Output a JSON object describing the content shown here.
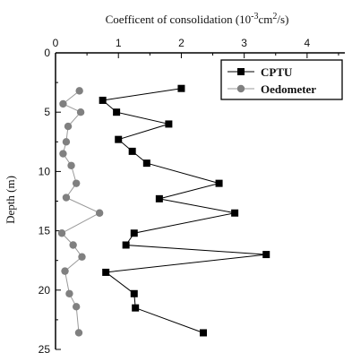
{
  "chart_data": {
    "type": "scatter",
    "title": "",
    "xlabel_parts": {
      "prefix": "Coefficent of consolidation (10",
      "exp1": "-3",
      "mid": "cm",
      "exp2": "2",
      "suffix": "/s)"
    },
    "ylabel": "Depth (m)",
    "x_axis_position": "top",
    "y_inverted": true,
    "xlim": [
      0,
      4.6
    ],
    "ylim": [
      25,
      0
    ],
    "x_ticks": [
      0,
      1,
      2,
      3,
      4
    ],
    "y_ticks": [
      0,
      5,
      10,
      15,
      20,
      25
    ],
    "grid": false,
    "legend_position": "top-right",
    "series": [
      {
        "name": "CPTU",
        "color": "#000000",
        "line_color": "#000000",
        "marker": "square",
        "points": [
          [
            2.0,
            3.0
          ],
          [
            0.75,
            4.0
          ],
          [
            0.97,
            5.0
          ],
          [
            1.8,
            6.0
          ],
          [
            1.0,
            7.3
          ],
          [
            1.22,
            8.3
          ],
          [
            1.45,
            9.3
          ],
          [
            2.6,
            11.0
          ],
          [
            1.65,
            12.3
          ],
          [
            2.85,
            13.5
          ],
          [
            1.25,
            15.2
          ],
          [
            1.12,
            16.2
          ],
          [
            3.35,
            17.0
          ],
          [
            0.8,
            18.5
          ],
          [
            1.25,
            20.3
          ],
          [
            1.27,
            21.5
          ],
          [
            2.35,
            23.6
          ]
        ]
      },
      {
        "name": "Oedometer",
        "color": "#808080",
        "line_color": "#999999",
        "marker": "circle",
        "points": [
          [
            0.38,
            3.2
          ],
          [
            0.12,
            4.3
          ],
          [
            0.4,
            5.0
          ],
          [
            0.2,
            6.2
          ],
          [
            0.17,
            7.5
          ],
          [
            0.12,
            8.5
          ],
          [
            0.25,
            9.5
          ],
          [
            0.33,
            11.0
          ],
          [
            0.17,
            12.2
          ],
          [
            0.7,
            13.5
          ],
          [
            0.1,
            15.2
          ],
          [
            0.28,
            16.2
          ],
          [
            0.42,
            17.2
          ],
          [
            0.15,
            18.4
          ],
          [
            0.22,
            20.3
          ],
          [
            0.33,
            21.4
          ],
          [
            0.37,
            23.6
          ]
        ]
      }
    ]
  }
}
